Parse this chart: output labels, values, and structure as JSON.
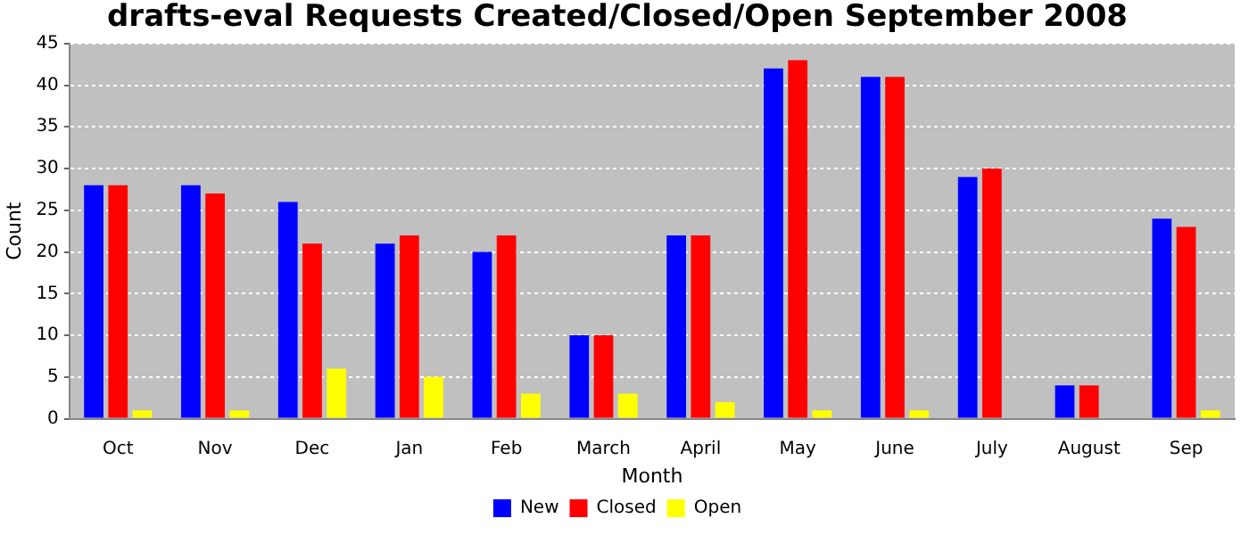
{
  "chart_data": {
    "type": "bar",
    "title": "drafts-eval Requests Created/Closed/Open September 2008",
    "xlabel": "Month",
    "ylabel": "Count",
    "categories": [
      "Oct",
      "Nov",
      "Dec",
      "Jan",
      "Feb",
      "March",
      "April",
      "May",
      "June",
      "July",
      "August",
      "Sep"
    ],
    "series": [
      {
        "name": "New",
        "color": "#0000ff",
        "values": [
          28,
          28,
          26,
          21,
          20,
          10,
          22,
          42,
          41,
          29,
          4,
          24
        ]
      },
      {
        "name": "Closed",
        "color": "#ff0000",
        "values": [
          28,
          27,
          21,
          22,
          22,
          10,
          22,
          43,
          41,
          30,
          4,
          23
        ]
      },
      {
        "name": "Open",
        "color": "#ffff00",
        "values": [
          1,
          1,
          6,
          5,
          3,
          3,
          2,
          1,
          1,
          0,
          0,
          1
        ]
      }
    ],
    "ylim": [
      0,
      45
    ],
    "yticks": [
      0,
      5,
      10,
      15,
      20,
      25,
      30,
      35,
      40,
      45
    ],
    "grid": "y",
    "legend": "bottom"
  }
}
